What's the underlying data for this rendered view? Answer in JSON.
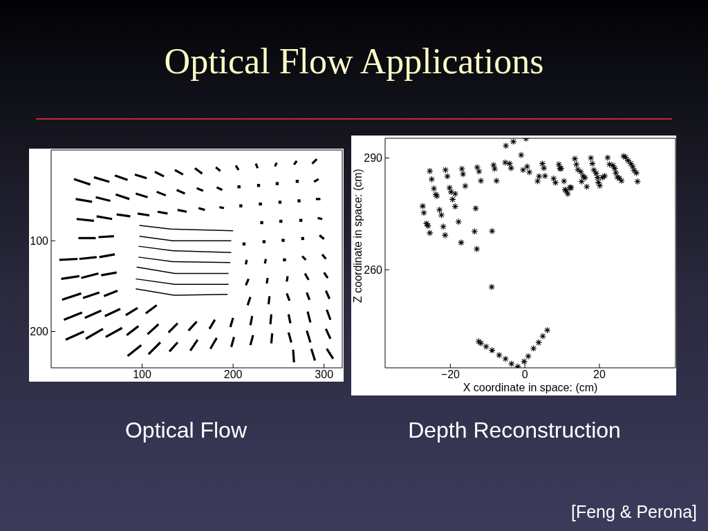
{
  "chart_data": [
    {
      "type": "line",
      "title": "Optical Flow Applications",
      "annotations": [
        "Optical Flow"
      ],
      "xlim": [
        0,
        320
      ],
      "ylim": [
        240,
        0
      ],
      "xticks": [
        100,
        200,
        300
      ],
      "yticks": [
        100,
        200
      ],
      "color": "#000000",
      "series": [
        {
          "x": [
            25,
            43,
            null,
            47,
            64,
            null,
            70,
            84,
            null,
            92,
            105,
            null,
            114,
            124,
            null,
            136,
            145,
            null,
            158,
            166,
            null,
            181,
            186,
            null,
            203,
            206,
            null,
            225,
            227,
            null,
            248,
            246,
            null,
            270,
            267,
            null,
            292,
            287
          ],
          "values": [
            32,
            38,
            null,
            30,
            35,
            null,
            28,
            33,
            null,
            27,
            31,
            null,
            24,
            29,
            null,
            22,
            27,
            null,
            20,
            26,
            null,
            19,
            23,
            null,
            17,
            22,
            null,
            15,
            20,
            null,
            14,
            18,
            null,
            12,
            16,
            null,
            10,
            15
          ]
        },
        {
          "x": [
            27,
            45,
            null,
            49,
            65,
            null,
            71,
            86,
            null,
            93,
            106,
            null,
            116,
            126,
            null,
            138,
            147,
            null,
            160,
            167,
            null,
            182,
            188,
            null,
            294,
            289
          ],
          "values": [
            54,
            57,
            null,
            52,
            56,
            null,
            49,
            54,
            null,
            48,
            52,
            null,
            46,
            50,
            null,
            44,
            48,
            null,
            42,
            45,
            null,
            41,
            44,
            null,
            32,
            35
          ]
        },
        {
          "x": [
            28,
            47,
            null,
            50,
            67,
            null,
            72,
            87,
            null,
            95,
            108,
            null,
            117,
            128,
            null,
            139,
            149,
            null,
            162,
            169,
            null,
            185,
            190,
            null,
            291,
            296
          ],
          "values": [
            76,
            78,
            null,
            73,
            76,
            null,
            71,
            73,
            null,
            70,
            72,
            null,
            68,
            70,
            null,
            66,
            68,
            null,
            64,
            66,
            null,
            63,
            64,
            null,
            54,
            54
          ]
        },
        {
          "x": [
            30,
            49,
            null,
            52,
            69,
            null,
            293,
            298
          ],
          "values": [
            97,
            97,
            null,
            96,
            95,
            null,
            75,
            76
          ]
        },
        {
          "x": [
            9,
            29,
            null,
            31,
            50,
            null,
            53,
            70,
            null,
            295,
            300
          ],
          "values": [
            121,
            120,
            null,
            120,
            118,
            null,
            118,
            115,
            null,
            94,
            98
          ]
        },
        {
          "x": [
            11,
            31,
            null,
            33,
            52,
            null,
            55,
            72,
            null,
            214,
            215,
            null,
            235,
            236,
            null,
            276,
            280,
            null,
            298,
            302
          ],
          "values": [
            142,
            139,
            null,
            141,
            136,
            null,
            138,
            135,
            null,
            126,
            121,
            null,
            125,
            120,
            null,
            117,
            121,
            null,
            115,
            120
          ]
        },
        {
          "x": [
            12,
            33,
            null,
            35,
            53,
            null,
            58,
            73,
            null,
            214,
            217,
            null,
            237,
            238,
            null,
            259,
            260,
            null,
            279,
            283,
            null,
            300,
            304
          ],
          "values": [
            165,
            158,
            null,
            163,
            157,
            null,
            161,
            155,
            null,
            149,
            142,
            null,
            147,
            141,
            null,
            145,
            139,
            null,
            136,
            143,
            null,
            135,
            141
          ]
        },
        {
          "x": [
            14,
            34,
            null,
            37,
            55,
            null,
            59,
            76,
            null,
            82,
            95,
            null,
            104,
            116,
            null,
            216,
            219,
            null,
            239,
            240,
            null,
            259,
            262,
            null,
            281,
            284,
            null,
            302,
            306
          ],
          "values": [
            187,
            179,
            null,
            185,
            177,
            null,
            183,
            175,
            null,
            182,
            174,
            null,
            180,
            171,
            null,
            171,
            162,
            null,
            170,
            161,
            null,
            158,
            166,
            null,
            157,
            165,
            null,
            155,
            164
          ]
        },
        {
          "x": [
            16,
            36,
            null,
            38,
            57,
            null,
            60,
            78,
            null,
            83,
            96,
            null,
            106,
            118,
            null,
            129,
            139,
            null,
            151,
            160,
            null,
            174,
            180,
            null,
            197,
            200,
            null,
            219,
            221,
            null,
            241,
            242,
            null,
            261,
            263,
            null,
            282,
            285,
            null,
            303,
            307
          ],
          "values": [
            209,
            200,
            null,
            208,
            197,
            null,
            206,
            196,
            null,
            204,
            194,
            null,
            203,
            192,
            null,
            201,
            191,
            null,
            199,
            189,
            null,
            197,
            187,
            null,
            195,
            185,
            null,
            193,
            183,
            null,
            192,
            181,
            null,
            181,
            191,
            null,
            178,
            190,
            null,
            176,
            187
          ]
        },
        {
          "x": [
            84,
            99,
            null,
            107,
            120,
            null,
            130,
            139,
            null,
            153,
            161,
            null,
            175,
            182,
            null,
            198,
            201,
            null,
            219,
            222,
            null,
            242,
            243,
            null,
            261,
            264,
            null,
            281,
            285,
            null,
            302,
            307
          ],
          "values": [
            227,
            215,
            null,
            225,
            212,
            null,
            222,
            212,
            null,
            221,
            209,
            null,
            219,
            207,
            null,
            217,
            206,
            null,
            215,
            204,
            null,
            213,
            202,
            null,
            201,
            212,
            null,
            199,
            212,
            null,
            197,
            208
          ]
        },
        {
          "x": [
            266,
            267,
            null,
            286,
            290,
            null,
            303,
            310
          ],
          "values": [
            220,
            234,
            null,
            219,
            232,
            null,
            219,
            230
          ]
        },
        {
          "x": [
            97,
            131,
            200
          ],
          "values": [
            83,
            87,
            89
          ]
        },
        {
          "x": [
            97,
            134,
            198
          ],
          "values": [
            95,
            100,
            100
          ]
        },
        {
          "x": [
            96,
            134,
            198
          ],
          "values": [
            106,
            111,
            113
          ]
        },
        {
          "x": [
            96,
            134,
            197
          ],
          "values": [
            118,
            123,
            124
          ]
        },
        {
          "x": [
            94,
            136,
            195
          ],
          "values": [
            129,
            136,
            136
          ]
        },
        {
          "x": [
            93,
            136,
            195
          ],
          "values": [
            142,
            148,
            148
          ]
        },
        {
          "x": [
            93,
            135,
            194
          ],
          "values": [
            153,
            160,
            159
          ]
        },
        {
          "type": "scatter",
          "marker": "square",
          "x": [
            206.5,
            228,
            248.5,
            270.5,
            208.5,
            230,
            251.5,
            272.5,
            231.5,
            252.5,
            274.5,
            212,
            234,
            255,
            276.5,
            256.5
          ],
          "values": [
            40.5,
            39,
            37,
            34.5,
            61.5,
            59.5,
            57.5,
            56,
            80,
            78.5,
            77.5,
            103.5,
            101,
            99.5,
            97.5,
            121
          ]
        }
      ]
    },
    {
      "type": "scatter",
      "xlabel": "X coordinate in space: (cm)",
      "ylabel": "Z coordinate in space: (cm)",
      "annotations": [
        "Depth Reconstruction",
        "[Feng & Perona]"
      ],
      "xlim": [
        -37.5,
        40.4
      ],
      "ylim": [
        233.7,
        295.3
      ],
      "xticks": [
        -20,
        0,
        20
      ],
      "yticks": [
        260,
        290
      ],
      "marker": "cross",
      "color": "#000000",
      "x": [
        0.3,
        -3.1,
        -5.1,
        -1,
        -5.3,
        -4.1,
        -3.7,
        -0.5,
        0.6,
        1.2,
        -8.4,
        -8.1,
        -7.6,
        -12.8,
        -12.3,
        -11.8,
        -13.2,
        -13.5,
        -12.9,
        -8.8,
        -16.9,
        -16.6,
        -16,
        -17.8,
        -17.1,
        -20.2,
        -19.8,
        -18.7,
        -19.4,
        -18.7,
        -21.3,
        -20.8,
        -22.9,
        -22.4,
        -21.9,
        -21.4,
        -25.5,
        -25,
        -24.4,
        -23.9,
        -23.6,
        -27.4,
        -27.1,
        -26.4,
        -26,
        -25.5,
        3.4,
        3.8,
        4.7,
        5.1,
        5.4,
        7.7,
        8.2,
        9.1,
        9.4,
        9.7,
        10.5,
        10.8,
        11.1,
        11.5,
        12.1,
        12.4,
        13.4,
        13.8,
        14.2,
        15,
        15.6,
        16.1,
        15.2,
        16.6,
        17.7,
        18.1,
        18.5,
        19.1,
        19.5,
        19.7,
        20.1,
        20.8,
        21.4,
        22.2,
        22.7,
        23.6,
        24.1,
        24.4,
        24.8,
        25.3,
        25.9,
        26.5,
        27,
        27.7,
        28.4,
        28.9,
        29.3,
        29.9,
        30.2,
        -8.9,
        -12.4,
        -11.8,
        -10.4,
        -8.8,
        -6.9,
        -5.2,
        -3.6,
        -1.9,
        -0.2,
        0.9,
        2.3,
        3.7,
        4.8,
        6
      ],
      "values": [
        295.2,
        294.4,
        293.3,
        290.8,
        288.8,
        288.5,
        287.3,
        286.8,
        287.7,
        286.2,
        288.1,
        287.1,
        283.9,
        287.5,
        286.4,
        283.9,
        276.5,
        270.3,
        265.6,
        270.4,
        287.1,
        285.7,
        282.5,
        272.9,
        267.3,
        282,
        280.9,
        280.4,
        278.9,
        277,
        286.8,
        285.1,
        276.1,
        274.7,
        271.6,
        269.3,
        286.5,
        284.3,
        281.8,
        280.2,
        279.8,
        277.1,
        275.3,
        272.4,
        271.8,
        269.9,
        283.8,
        285.1,
        288.5,
        287.3,
        285.2,
        284.5,
        283.4,
        288.3,
        287.2,
        287.2,
        283.8,
        281.5,
        281.2,
        280.4,
        282.1,
        282,
        289.8,
        288.3,
        286.9,
        286.3,
        285.2,
        284.7,
        283.7,
        282.3,
        290,
        288.5,
        286.8,
        285.9,
        284.8,
        283.5,
        282.6,
        284.8,
        285.2,
        290.1,
        288.3,
        288,
        287.2,
        286,
        284.9,
        284.6,
        283.9,
        290.5,
        290.2,
        289.3,
        288.5,
        287.7,
        286.7,
        286,
        283.7,
        255.4,
        240.8,
        240.3,
        239.4,
        238.4,
        237.1,
        236.1,
        234.8,
        234,
        235.4,
        236.8,
        238.9,
        240.5,
        242.2,
        243.8
      ]
    }
  ]
}
